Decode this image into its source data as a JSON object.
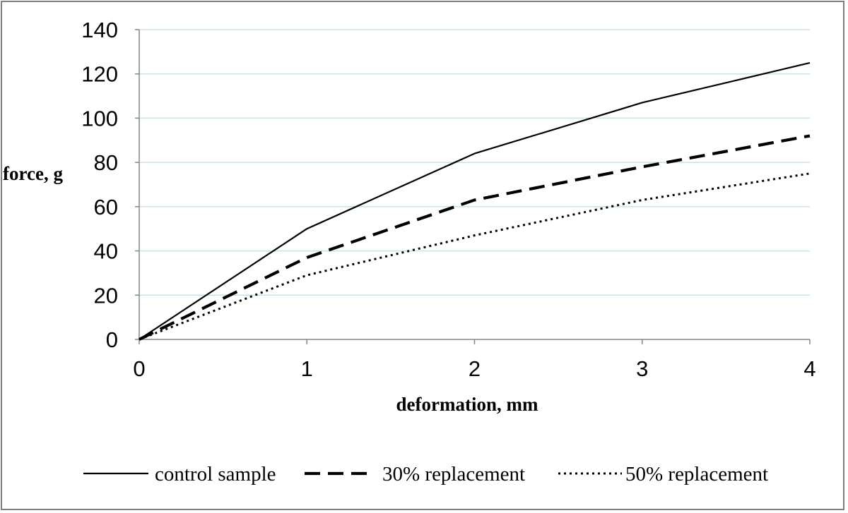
{
  "chart_data": {
    "type": "line",
    "title": "",
    "xlabel": "deformation, mm",
    "ylabel": "force, g",
    "x": [
      0,
      1,
      2,
      3,
      4
    ],
    "xlim": [
      0,
      4
    ],
    "ylim": [
      0,
      140
    ],
    "xticks": [
      "0",
      "1",
      "2",
      "3",
      "4"
    ],
    "yticks": [
      "0",
      "20",
      "40",
      "60",
      "80",
      "100",
      "120",
      "140"
    ],
    "grid": "horizontal",
    "gridline_color": "#c5e3ea",
    "legend_position": "bottom",
    "series": [
      {
        "name": "control sample",
        "values": [
          0,
          50,
          84,
          107,
          125
        ],
        "style": "solid",
        "color": "#000000"
      },
      {
        "name": "30% replacement",
        "values": [
          0,
          37,
          63,
          78,
          92
        ],
        "style": "dashed",
        "color": "#000000"
      },
      {
        "name": "50% replacement",
        "values": [
          0,
          29,
          47,
          63,
          75
        ],
        "style": "dotted",
        "color": "#000000"
      }
    ]
  }
}
